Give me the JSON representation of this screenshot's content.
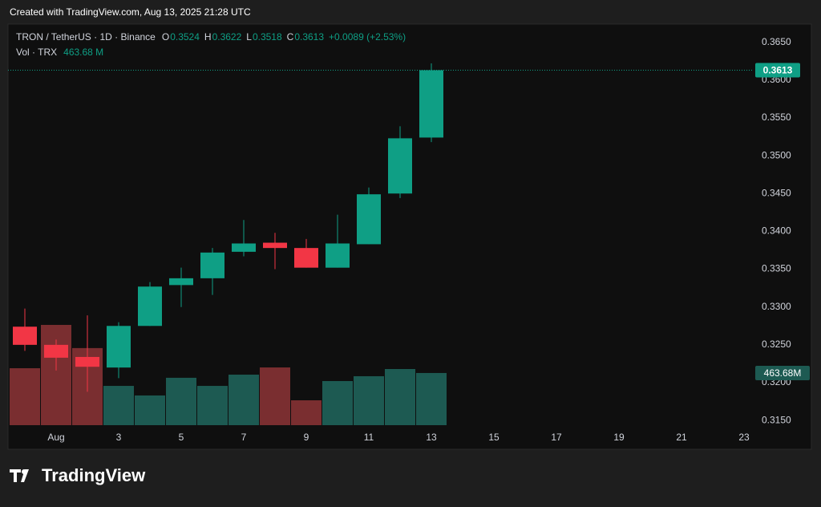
{
  "header": "Created with TradingView.com, Aug 13, 2025 21:28 UTC",
  "logo_text": "TradingView",
  "chart_data": {
    "type": "candlestick",
    "symbol": "TRON / TetherUS · 1D · Binance",
    "volume_title": "Vol · TRX",
    "change_label": "+0.0089 (+2.53%)",
    "last_volume_label": "463.68 M",
    "last_volume_badge": "463.68M",
    "ohlc_letters": [
      "O",
      "H",
      "L",
      "C"
    ],
    "x": [
      "2025-07-31",
      "2025-08-01",
      "2025-08-02",
      "2025-08-03",
      "2025-08-04",
      "2025-08-05",
      "2025-08-06",
      "2025-08-07",
      "2025-08-08",
      "2025-08-09",
      "2025-08-10",
      "2025-08-11",
      "2025-08-12",
      "2025-08-13"
    ],
    "open": [
      0.3274,
      0.325,
      0.3234,
      0.322,
      0.3275,
      0.3329,
      0.3338,
      0.3373,
      0.3385,
      0.3378,
      0.3352,
      0.3383,
      0.345,
      0.3524
    ],
    "high": [
      0.3298,
      0.3257,
      0.3289,
      0.328,
      0.3333,
      0.3352,
      0.3378,
      0.3415,
      0.3398,
      0.339,
      0.3422,
      0.3458,
      0.3539,
      0.3622
    ],
    "low": [
      0.3242,
      0.3216,
      0.3188,
      0.3206,
      0.3275,
      0.33,
      0.3316,
      0.3367,
      0.335,
      0.3352,
      0.3352,
      0.3383,
      0.3444,
      0.3518
    ],
    "close": [
      0.325,
      0.3233,
      0.3221,
      0.3275,
      0.3327,
      0.3338,
      0.3372,
      0.3384,
      0.3378,
      0.3352,
      0.3384,
      0.3449,
      0.3523,
      0.3613
    ],
    "volume": [
      506000000,
      891000000,
      685000000,
      349000000,
      264000000,
      421000000,
      349000000,
      449000000,
      513000000,
      221000000,
      392000000,
      435000000,
      499000000,
      463680000
    ],
    "up_color": "#0f9f85",
    "down_color": "#f23645",
    "volume_up_color": "#1d5a52",
    "volume_down_color": "#7a2e30",
    "xlim": [
      "2025-07-30",
      "2025-08-25"
    ],
    "xticks": [
      {
        "value": "2025-08-01",
        "label": "Aug"
      },
      {
        "value": "2025-08-03",
        "label": "3"
      },
      {
        "value": "2025-08-05",
        "label": "5"
      },
      {
        "value": "2025-08-07",
        "label": "7"
      },
      {
        "value": "2025-08-09",
        "label": "9"
      },
      {
        "value": "2025-08-11",
        "label": "11"
      },
      {
        "value": "2025-08-13",
        "label": "13"
      },
      {
        "value": "2025-08-15",
        "label": "15"
      },
      {
        "value": "2025-08-17",
        "label": "17"
      },
      {
        "value": "2025-08-19",
        "label": "19"
      },
      {
        "value": "2025-08-21",
        "label": "21"
      },
      {
        "value": "2025-08-23",
        "label": "23"
      }
    ],
    "ylim": [
      0.3112,
      0.3674
    ],
    "yticks": [
      {
        "value": 0.315,
        "label": "0.3150"
      },
      {
        "value": 0.32,
        "label": "0.3200"
      },
      {
        "value": 0.325,
        "label": "0.3250"
      },
      {
        "value": 0.33,
        "label": "0.3300"
      },
      {
        "value": 0.335,
        "label": "0.3350"
      },
      {
        "value": 0.34,
        "label": "0.3400"
      },
      {
        "value": 0.345,
        "label": "0.3450"
      },
      {
        "value": 0.35,
        "label": "0.3500"
      },
      {
        "value": 0.355,
        "label": "0.3550"
      },
      {
        "value": 0.36,
        "label": "0.3600"
      },
      {
        "value": 0.365,
        "label": "0.3650"
      }
    ],
    "grid": false
  }
}
